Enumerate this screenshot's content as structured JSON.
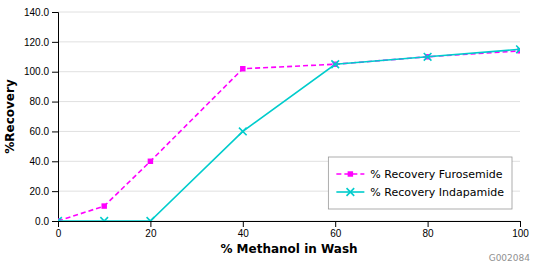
{
  "chart_data": {
    "type": "line",
    "x": [
      0,
      10,
      20,
      40,
      60,
      80,
      100
    ],
    "series": [
      {
        "name": "% Recovery Furosemide",
        "color": "#ff00ff",
        "marker": "square",
        "line_style": "dashed",
        "values": [
          0.0,
          10.0,
          40.0,
          102.0,
          105.0,
          110.0,
          114.0
        ]
      },
      {
        "name": "% Recovery Indapamide",
        "color": "#00cccc",
        "marker": "x",
        "line_style": "solid",
        "values": [
          0.0,
          0.0,
          0.0,
          60.0,
          105.0,
          110.0,
          115.0
        ]
      }
    ],
    "x_label": "% Methanol in Wash",
    "y_label": "%Recovery",
    "xlim": [
      0,
      100
    ],
    "xticks": [
      0,
      20,
      40,
      60,
      80,
      100
    ],
    "ylim": [
      0.0,
      140.0
    ],
    "yticks": [
      {
        "value": 0.0,
        "label": "0.0"
      },
      {
        "value": 20.0,
        "label": "20.0"
      },
      {
        "value": 40.0,
        "label": "40.0"
      },
      {
        "value": 60.0,
        "label": "60.0"
      },
      {
        "value": 80.0,
        "label": "80.0"
      },
      {
        "value": 100.0,
        "label": "100.0"
      },
      {
        "value": 120.0,
        "label": "120.0"
      },
      {
        "value": 140.0,
        "label": "140.0"
      }
    ],
    "grid": "y",
    "legend": "lower right",
    "annotations": [
      "G002084"
    ]
  }
}
